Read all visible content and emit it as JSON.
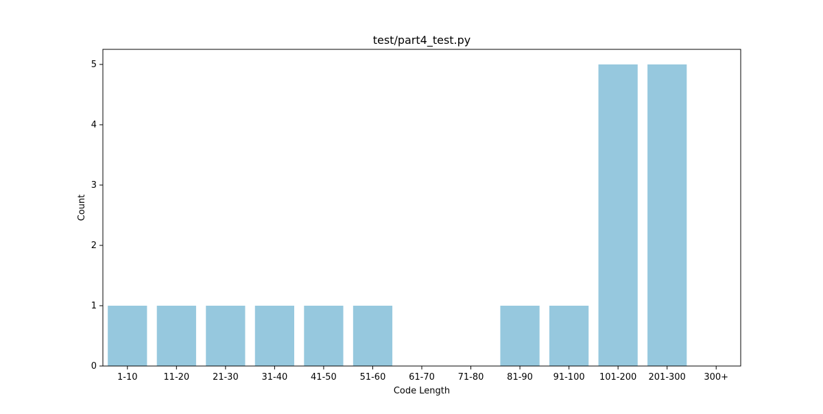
{
  "chart_data": {
    "type": "bar",
    "title": "test/part4_test.py",
    "xlabel": "Code Length",
    "ylabel": "Count",
    "categories": [
      "1-10",
      "11-20",
      "21-30",
      "31-40",
      "41-50",
      "51-60",
      "61-70",
      "71-80",
      "81-90",
      "91-100",
      "101-200",
      "201-300",
      "300+"
    ],
    "values": [
      1,
      1,
      1,
      1,
      1,
      1,
      0,
      0,
      1,
      1,
      5,
      5,
      0
    ],
    "ylim": [
      0,
      5.25
    ],
    "yticks": [
      "0",
      "1",
      "2",
      "3",
      "4",
      "5"
    ],
    "grid": false,
    "bar_color": "#96c8de",
    "axis_color": "#000000"
  }
}
